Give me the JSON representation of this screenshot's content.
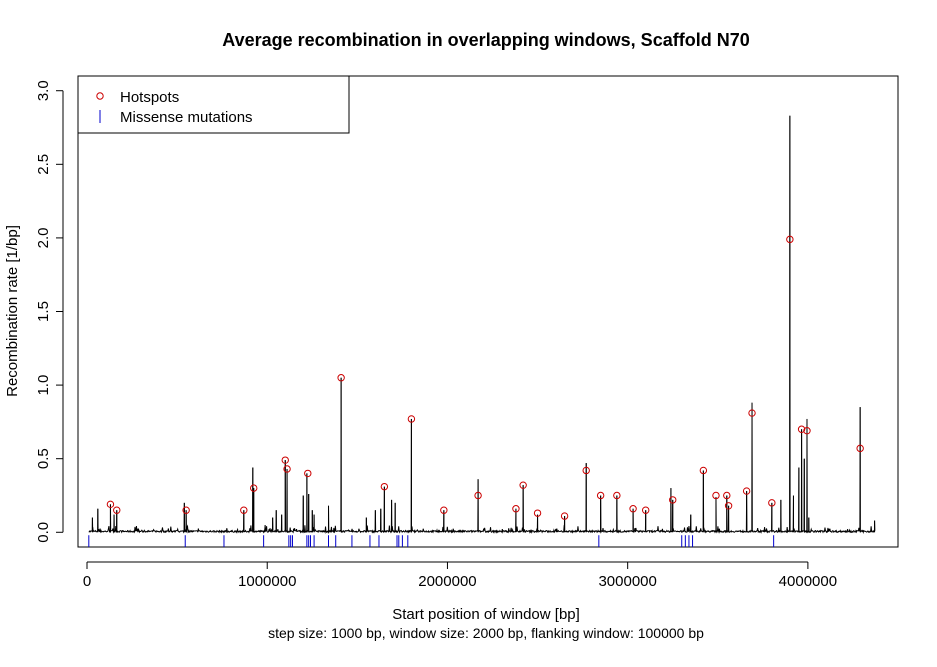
{
  "chart_data": {
    "type": "line",
    "title": "Average recombination in overlapping windows, Scaffold N70",
    "xlabel": "Start position of window [bp]",
    "subtitle": "step size: 1000 bp, window size: 2000 bp, flanking window: 100000 bp",
    "ylabel": "Recombination rate [1/bp]",
    "xlim": [
      -50000,
      4500000
    ],
    "ylim": [
      -0.1,
      3.1
    ],
    "x_ticks": [
      0,
      1000000,
      2000000,
      3000000,
      4000000
    ],
    "x_tick_labels": [
      "0",
      "1000000",
      "2000000",
      "3000000",
      "4000000"
    ],
    "y_ticks": [
      0.0,
      0.5,
      1.0,
      1.5,
      2.0,
      2.5,
      3.0
    ],
    "y_tick_labels": [
      "0.0",
      "0.5",
      "1.0",
      "1.5",
      "2.0",
      "2.5",
      "3.0"
    ],
    "grid": false,
    "legend_position": "top-left",
    "legend": [
      {
        "label": "Hotspots",
        "symbol": "circle",
        "color": "#cc0000"
      },
      {
        "label": "Missense mutations",
        "symbol": "vline",
        "color": "#0000cc"
      }
    ],
    "series": [
      {
        "name": "recombination rate",
        "color": "#000000",
        "peaks": [
          [
            30000,
            0.1
          ],
          [
            60000,
            0.16
          ],
          [
            130000,
            0.19
          ],
          [
            150000,
            0.12
          ],
          [
            165000,
            0.15
          ],
          [
            540000,
            0.2
          ],
          [
            550000,
            0.15
          ],
          [
            870000,
            0.15
          ],
          [
            920000,
            0.44
          ],
          [
            925000,
            0.3
          ],
          [
            1030000,
            0.1
          ],
          [
            1050000,
            0.15
          ],
          [
            1080000,
            0.12
          ],
          [
            1100000,
            0.49
          ],
          [
            1110000,
            0.43
          ],
          [
            1200000,
            0.25
          ],
          [
            1220000,
            0.4
          ],
          [
            1230000,
            0.26
          ],
          [
            1250000,
            0.15
          ],
          [
            1260000,
            0.12
          ],
          [
            1340000,
            0.18
          ],
          [
            1410000,
            1.05
          ],
          [
            1550000,
            0.1
          ],
          [
            1600000,
            0.15
          ],
          [
            1630000,
            0.16
          ],
          [
            1650000,
            0.31
          ],
          [
            1690000,
            0.22
          ],
          [
            1710000,
            0.2
          ],
          [
            1800000,
            0.77
          ],
          [
            1980000,
            0.15
          ],
          [
            2170000,
            0.36
          ],
          [
            2380000,
            0.16
          ],
          [
            2420000,
            0.32
          ],
          [
            2500000,
            0.12
          ],
          [
            2650000,
            0.11
          ],
          [
            2770000,
            0.47
          ],
          [
            2850000,
            0.25
          ],
          [
            2940000,
            0.25
          ],
          [
            3030000,
            0.16
          ],
          [
            3100000,
            0.15
          ],
          [
            3240000,
            0.3
          ],
          [
            3250000,
            0.22
          ],
          [
            3350000,
            0.12
          ],
          [
            3420000,
            0.42
          ],
          [
            3490000,
            0.24
          ],
          [
            3550000,
            0.25
          ],
          [
            3560000,
            0.18
          ],
          [
            3660000,
            0.28
          ],
          [
            3690000,
            0.88
          ],
          [
            3800000,
            0.2
          ],
          [
            3850000,
            0.22
          ],
          [
            3900000,
            2.83
          ],
          [
            3920000,
            0.25
          ],
          [
            3950000,
            0.44
          ],
          [
            3965000,
            0.7
          ],
          [
            3980000,
            0.5
          ],
          [
            3995000,
            0.77
          ],
          [
            4005000,
            0.1
          ],
          [
            4290000,
            0.85
          ],
          [
            4370000,
            0.08
          ]
        ]
      },
      {
        "name": "Hotspots",
        "color": "#cc0000",
        "x": [
          130000,
          165000,
          550000,
          870000,
          925000,
          1100000,
          1110000,
          1225000,
          1410000,
          1650000,
          1800000,
          1980000,
          2170000,
          2380000,
          2420000,
          2500000,
          2650000,
          2770000,
          2850000,
          2940000,
          3030000,
          3100000,
          3250000,
          3420000,
          3490000,
          3550000,
          3560000,
          3660000,
          3690000,
          3800000,
          3900000,
          3965000,
          3995000,
          4290000
        ],
        "y": [
          0.19,
          0.15,
          0.15,
          0.15,
          0.3,
          0.49,
          0.43,
          0.4,
          1.05,
          0.31,
          0.77,
          0.15,
          0.25,
          0.16,
          0.32,
          0.13,
          0.11,
          0.42,
          0.25,
          0.25,
          0.16,
          0.15,
          0.22,
          0.42,
          0.25,
          0.25,
          0.18,
          0.28,
          0.81,
          0.2,
          1.99,
          0.7,
          0.69,
          0.57
        ]
      },
      {
        "name": "Missense mutations",
        "color": "#0000cc",
        "x": [
          10000,
          545000,
          760000,
          980000,
          1120000,
          1130000,
          1140000,
          1220000,
          1230000,
          1240000,
          1260000,
          1340000,
          1380000,
          1470000,
          1570000,
          1620000,
          1720000,
          1730000,
          1750000,
          1780000,
          2840000,
          3300000,
          3320000,
          3340000,
          3360000,
          3810000
        ]
      }
    ]
  }
}
